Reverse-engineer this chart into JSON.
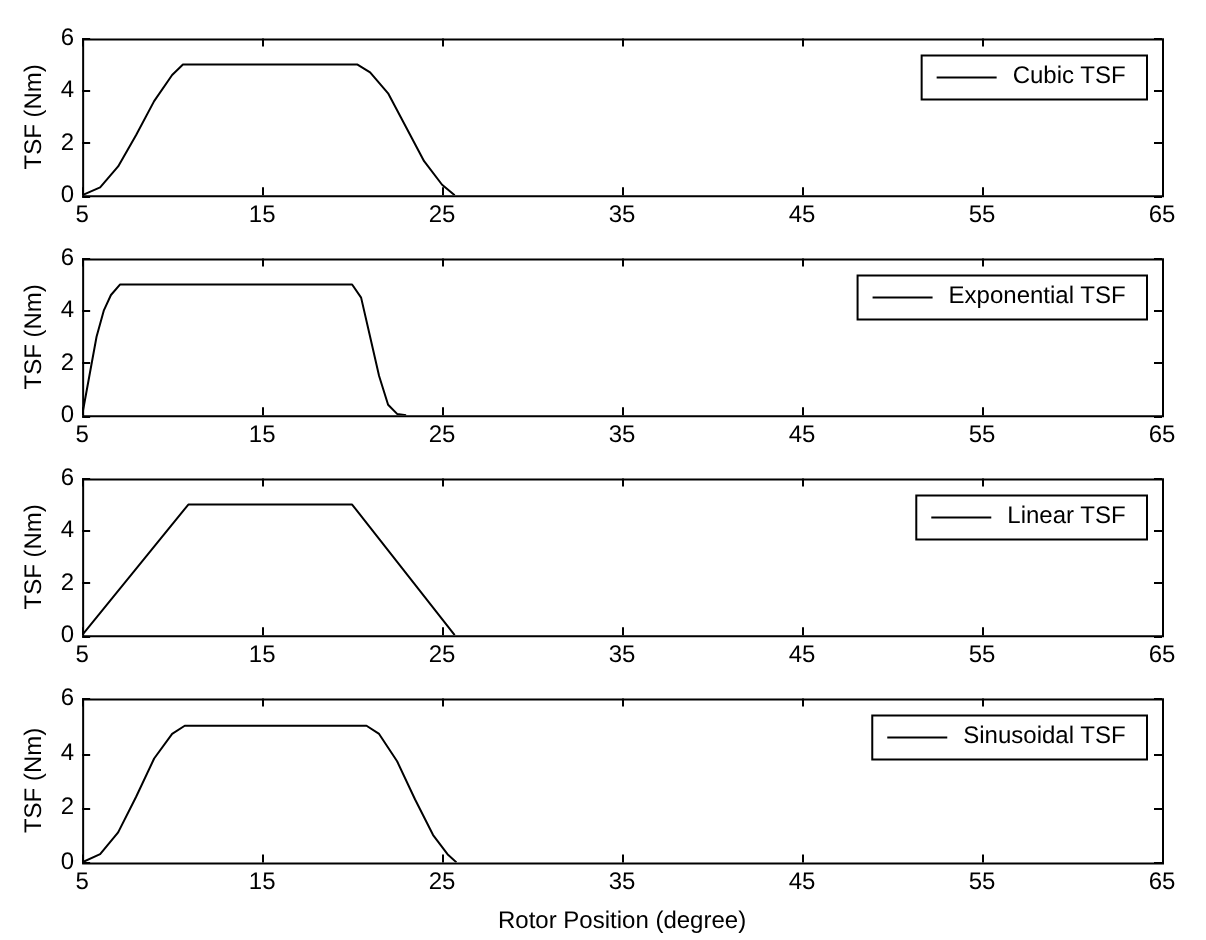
{
  "chart_data": [
    {
      "type": "line",
      "ylabel": "TSF (Nm)",
      "xlim": [
        5,
        65
      ],
      "xticks": [
        5,
        15,
        25,
        35,
        45,
        55,
        65
      ],
      "ylim": [
        0,
        6
      ],
      "yticks": [
        0,
        2,
        4,
        6
      ],
      "grid": false,
      "legend": "top right",
      "marker": "none",
      "line_style": "solid",
      "x": [
        5,
        6,
        7,
        8,
        9,
        10,
        10.6,
        20.3,
        21,
        22,
        23,
        24,
        25,
        25.7
      ],
      "series": [
        {
          "name": "Cubic TSF",
          "color": "#000000",
          "values": [
            0,
            0.3,
            1.1,
            2.3,
            3.6,
            4.6,
            5,
            5,
            4.7,
            3.9,
            2.6,
            1.3,
            0.4,
            0
          ]
        }
      ]
    },
    {
      "type": "line",
      "ylabel": "TSF (Nm)",
      "xlim": [
        5,
        65
      ],
      "xticks": [
        5,
        15,
        25,
        35,
        45,
        55,
        65
      ],
      "ylim": [
        0,
        6
      ],
      "yticks": [
        0,
        2,
        4,
        6
      ],
      "grid": false,
      "legend": "top right",
      "marker": "none",
      "line_style": "solid",
      "x": [
        5,
        5.4,
        5.8,
        6.2,
        6.6,
        7.1,
        20,
        20.5,
        21,
        21.5,
        22,
        22.5,
        23
      ],
      "series": [
        {
          "name": "Exponential TSF",
          "color": "#000000",
          "values": [
            0,
            1.5,
            3,
            4,
            4.6,
            5,
            5,
            4.5,
            3,
            1.5,
            0.4,
            0.05,
            0
          ]
        }
      ]
    },
    {
      "type": "line",
      "ylabel": "TSF (Nm)",
      "xlim": [
        5,
        65
      ],
      "xticks": [
        5,
        15,
        25,
        35,
        45,
        55,
        65
      ],
      "ylim": [
        0,
        6
      ],
      "yticks": [
        0,
        2,
        4,
        6
      ],
      "grid": false,
      "legend": "top right",
      "marker": "none",
      "line_style": "solid",
      "x": [
        5,
        10.9,
        20,
        25.7
      ],
      "series": [
        {
          "name": "Linear TSF",
          "color": "#000000",
          "values": [
            0,
            5,
            5,
            0
          ]
        }
      ]
    },
    {
      "type": "line",
      "ylabel": "TSF (Nm)",
      "xlabel": "Rotor Position (degree)",
      "xlim": [
        5,
        65
      ],
      "xticks": [
        5,
        15,
        25,
        35,
        45,
        55,
        65
      ],
      "ylim": [
        0,
        6
      ],
      "yticks": [
        0,
        2,
        4,
        6
      ],
      "grid": false,
      "legend": "top right",
      "marker": "none",
      "line_style": "solid",
      "x": [
        5,
        6,
        7,
        8,
        9,
        10,
        10.7,
        20.8,
        21.5,
        22.5,
        23.5,
        24.5,
        25.3,
        25.8
      ],
      "series": [
        {
          "name": "Sinusoidal TSF",
          "color": "#000000",
          "values": [
            0,
            0.3,
            1.1,
            2.4,
            3.8,
            4.7,
            5,
            5,
            4.7,
            3.7,
            2.3,
            1,
            0.3,
            0
          ]
        }
      ]
    }
  ]
}
